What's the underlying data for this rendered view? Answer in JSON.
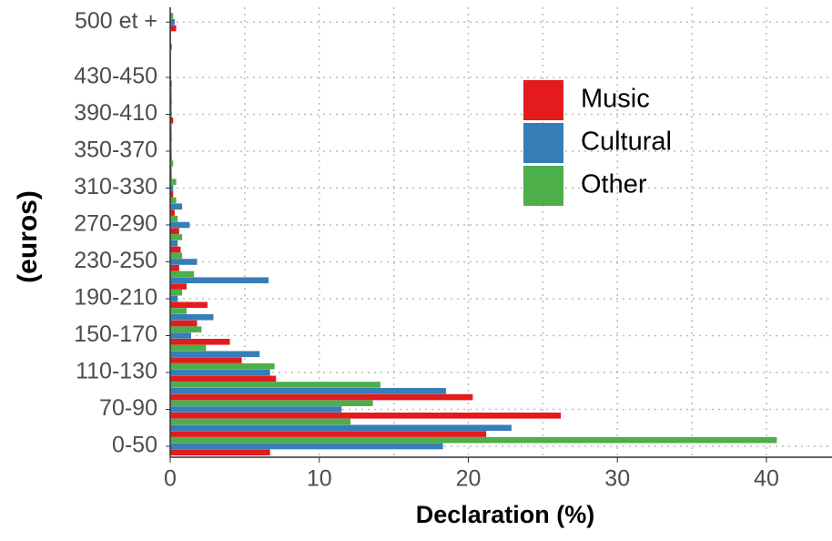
{
  "chart_data": {
    "type": "bar",
    "orientation": "horizontal",
    "x_label": "Declaration (%)",
    "y_label": "(euros)",
    "categories": [
      "0-50",
      null,
      "70-90",
      null,
      "110-130",
      null,
      "150-170",
      null,
      "190-210",
      null,
      "230-250",
      null,
      "270-290",
      null,
      "310-330",
      null,
      "350-370",
      null,
      "390-410",
      null,
      "430-450",
      null,
      null,
      "500 et +"
    ],
    "series": [
      {
        "name": "Music",
        "color": "#e41a1c",
        "values": [
          6.7,
          21.2,
          26.2,
          20.3,
          7.1,
          4.8,
          4.0,
          1.8,
          2.5,
          1.1,
          0.6,
          0.7,
          0.6,
          0.3,
          0.2,
          0.1,
          0.1,
          0.1,
          0.2,
          0.1,
          0.1,
          0.05,
          0.1,
          0.4
        ]
      },
      {
        "name": "Cultural",
        "color": "#377eb8",
        "values": [
          18.3,
          22.9,
          11.5,
          18.5,
          6.7,
          6.0,
          1.4,
          2.9,
          0.5,
          6.6,
          1.8,
          0.5,
          1.3,
          0.8,
          0.2,
          0.1,
          0.1,
          0.1,
          0.1,
          0.1,
          0.05,
          0.05,
          0.05,
          0.3
        ]
      },
      {
        "name": "Other",
        "color": "#4daf4a",
        "values": [
          40.7,
          12.1,
          13.6,
          14.1,
          7.0,
          2.4,
          2.1,
          1.1,
          0.8,
          1.6,
          0.8,
          0.8,
          0.5,
          0.4,
          0.4,
          0.2,
          0.1,
          0.1,
          0.1,
          0.1,
          0.05,
          0.05,
          0.05,
          0.2
        ]
      }
    ],
    "xlim": [
      0,
      44.4
    ],
    "xticks": [
      0,
      10,
      20,
      30,
      40
    ],
    "xminorticks": [
      5,
      15,
      25,
      35
    ],
    "grid": true,
    "legend": "top-right"
  }
}
